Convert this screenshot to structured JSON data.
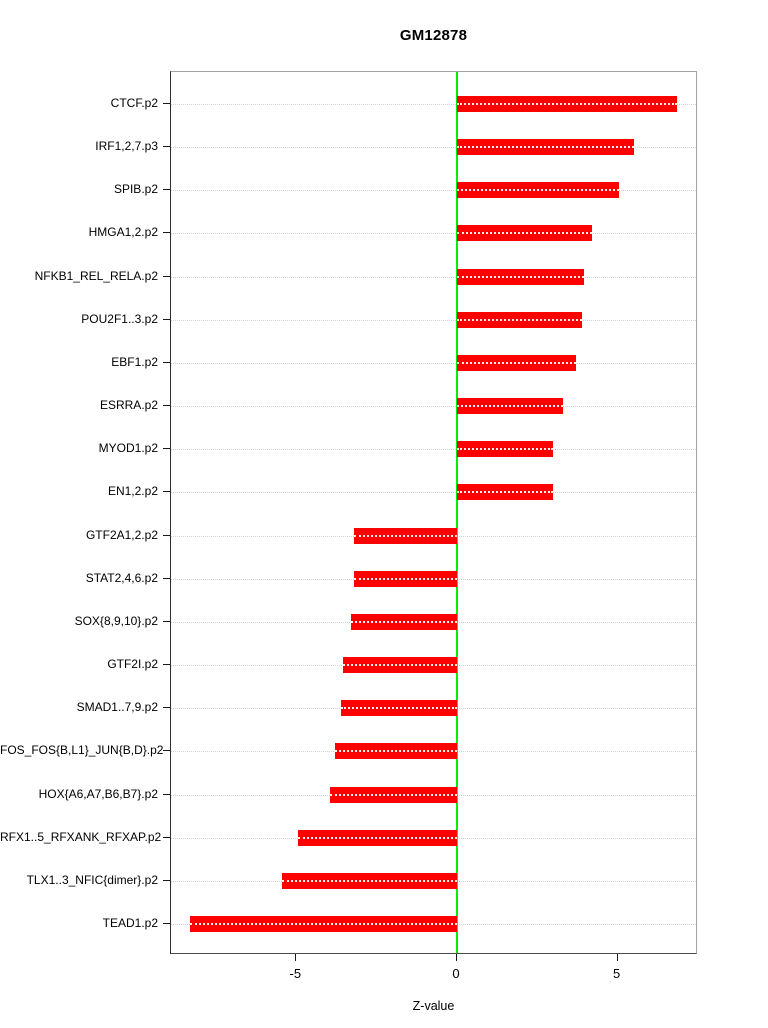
{
  "chart_data": {
    "type": "bar",
    "orientation": "horizontal",
    "title": "GM12878",
    "xlabel": "Z-value",
    "xlim": [
      -8.9,
      7.5
    ],
    "x_ticks": [
      -5,
      0,
      5
    ],
    "x_tick_labels": [
      "-5",
      "0",
      "5"
    ],
    "grid": "dotted-horizontal-per-category",
    "legend": "none",
    "bar_color": "#ff0000",
    "zero_line_color": "#00ee00",
    "grid_color": "#d2d2d2",
    "categories": [
      "CTCF.p2",
      "IRF1,2,7.p3",
      "SPIB.p2",
      "HMGA1,2.p2",
      "NFKB1_REL_RELA.p2",
      "POU2F1..3.p2",
      "EBF1.p2",
      "ESRRA.p2",
      "MYOD1.p2",
      "EN1,2.p2",
      "GTF2A1,2.p2",
      "STAT2,4,6.p2",
      "SOX{8,9,10}.p2",
      "GTF2I.p2",
      "SMAD1..7,9.p2",
      "FOS_FOS{B,L1}_JUN{B,D}.p2",
      "HOX{A6,A7,B6,B7}.p2",
      "RFX1..5_RFXANK_RFXAP.p2",
      "TLX1..3_NFIC{dimer}.p2",
      "TEAD1.p2"
    ],
    "values": [
      6.85,
      5.5,
      5.05,
      4.2,
      3.95,
      3.9,
      3.7,
      3.3,
      3.0,
      3.0,
      -3.2,
      -3.2,
      -3.3,
      -3.55,
      -3.6,
      -3.8,
      -3.95,
      -4.95,
      -5.45,
      -8.3
    ]
  }
}
